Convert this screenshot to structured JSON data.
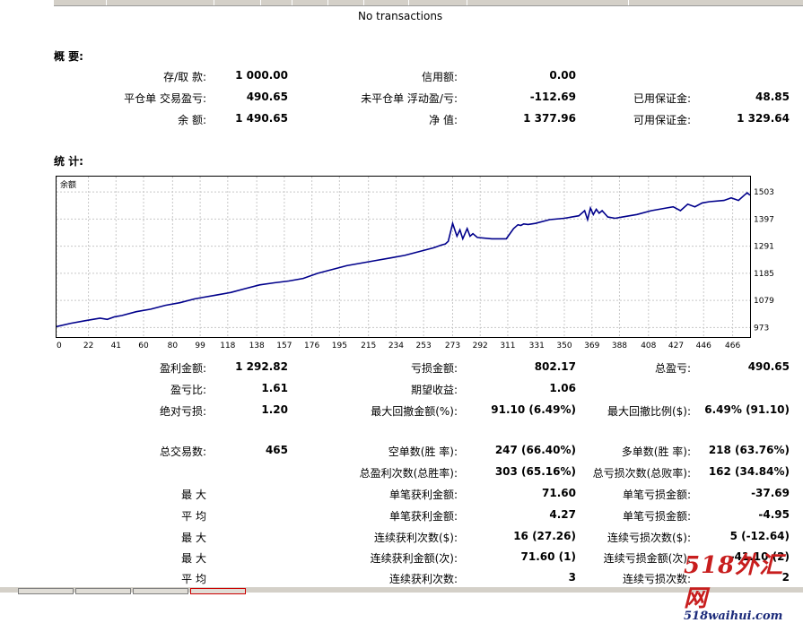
{
  "empty_message": "No transactions",
  "summary": {
    "title": "概 要:",
    "rows": [
      [
        {
          "label": "存/取 款:",
          "value": "1 000.00"
        },
        {
          "label": "信用额:",
          "value": "0.00"
        },
        {
          "label": "",
          "value": ""
        }
      ],
      [
        {
          "label": "平仓单 交易盈亏:",
          "value": "490.65"
        },
        {
          "label": "未平仓单 浮动盈/亏:",
          "value": "-112.69"
        },
        {
          "label": "已用保证金:",
          "value": "48.85"
        }
      ],
      [
        {
          "label": "余 额:",
          "value": "1 490.65"
        },
        {
          "label": "净 值:",
          "value": "1 377.96"
        },
        {
          "label": "可用保证金:",
          "value": "1 329.64"
        }
      ]
    ]
  },
  "stats": {
    "title": "统 计:",
    "rows": [
      [
        {
          "label": "盈利金额:",
          "value": "1 292.82"
        },
        {
          "label": "亏损金额:",
          "value": "802.17"
        },
        {
          "label": "总盈亏:",
          "value": "490.65"
        }
      ],
      [
        {
          "label": "盈亏比:",
          "value": "1.61"
        },
        {
          "label": "期望收益:",
          "value": "1.06"
        },
        {
          "label": "",
          "value": ""
        }
      ],
      [
        {
          "label": "绝对亏损:",
          "value": "1.20"
        },
        {
          "label": "最大回撤金额(%):",
          "value": "91.10 (6.49%)"
        },
        {
          "label": "最大回撤比例($):",
          "value": "6.49% (91.10)"
        }
      ],
      [
        {
          "label": "总交易数:",
          "value": "465"
        },
        {
          "label": "空单数(胜 率):",
          "value": "247 (66.40%)"
        },
        {
          "label": "多单数(胜 率):",
          "value": "218 (63.76%)"
        }
      ],
      [
        {
          "label": "",
          "value": ""
        },
        {
          "label": "总盈利次数(总胜率):",
          "value": "303 (65.16%)"
        },
        {
          "label": "总亏损次数(总败率):",
          "value": "162 (34.84%)"
        }
      ],
      [
        {
          "label": "最 大",
          "value": ""
        },
        {
          "label": "单笔获利金额:",
          "value": "71.60"
        },
        {
          "label": "单笔亏损金额:",
          "value": "-37.69"
        }
      ],
      [
        {
          "label": "平 均",
          "value": ""
        },
        {
          "label": "单笔获利金额:",
          "value": "4.27"
        },
        {
          "label": "单笔亏损金额:",
          "value": "-4.95"
        }
      ],
      [
        {
          "label": "最 大",
          "value": ""
        },
        {
          "label": "连续获利次数($):",
          "value": "16 (27.26)"
        },
        {
          "label": "连续亏损次数($):",
          "value": "5 (-12.64)"
        }
      ],
      [
        {
          "label": "最 大",
          "value": ""
        },
        {
          "label": "连续获利金额(次):",
          "value": "71.60 (1)"
        },
        {
          "label": "连续亏损金额(次):",
          "value": "-41.10 (2)"
        }
      ],
      [
        {
          "label": "平 均",
          "value": ""
        },
        {
          "label": "连续获利次数:",
          "value": "3"
        },
        {
          "label": "连续亏损次数:",
          "value": "2"
        }
      ]
    ]
  },
  "chart_data": {
    "type": "line",
    "title": "余额",
    "x_ticks": [
      0,
      22,
      41,
      60,
      80,
      99,
      118,
      138,
      157,
      176,
      195,
      215,
      234,
      253,
      273,
      292,
      311,
      331,
      350,
      369,
      388,
      408,
      427,
      446,
      466
    ],
    "y_ticks": [
      973,
      1079,
      1185,
      1291,
      1397,
      1503
    ],
    "xlim": [
      0,
      478
    ],
    "ylim": [
      950,
      1535
    ],
    "grid": true,
    "line_color": "#00008b",
    "series": [
      {
        "x": [
          0,
          10,
          20,
          30,
          35,
          40,
          45,
          55,
          65,
          75,
          85,
          95,
          100,
          110,
          120,
          130,
          140,
          150,
          160,
          170,
          180,
          190,
          200,
          210,
          220,
          230,
          240,
          250,
          260,
          265,
          268,
          270,
          273,
          276,
          278,
          280,
          283,
          285,
          287,
          290,
          300,
          310,
          315,
          318,
          320,
          322,
          325,
          330,
          340,
          350,
          360,
          364,
          366,
          368,
          370,
          372,
          374,
          376,
          380,
          385,
          390,
          395,
          400,
          410,
          420,
          425,
          430,
          435,
          440,
          445,
          450,
          460,
          465,
          470,
          474,
          476,
          478
        ],
        "y": [
          977,
          990,
          1000,
          1010,
          1005,
          1015,
          1020,
          1035,
          1045,
          1060,
          1070,
          1085,
          1090,
          1100,
          1110,
          1125,
          1140,
          1148,
          1155,
          1165,
          1185,
          1200,
          1215,
          1225,
          1235,
          1245,
          1255,
          1270,
          1285,
          1295,
          1300,
          1310,
          1380,
          1330,
          1355,
          1320,
          1360,
          1330,
          1340,
          1325,
          1320,
          1320,
          1360,
          1375,
          1372,
          1378,
          1376,
          1380,
          1395,
          1400,
          1410,
          1430,
          1395,
          1440,
          1415,
          1435,
          1420,
          1430,
          1405,
          1400,
          1405,
          1410,
          1415,
          1430,
          1440,
          1445,
          1430,
          1455,
          1445,
          1460,
          1465,
          1470,
          1480,
          1470,
          1490,
          1500,
          1490
        ]
      }
    ]
  }
}
